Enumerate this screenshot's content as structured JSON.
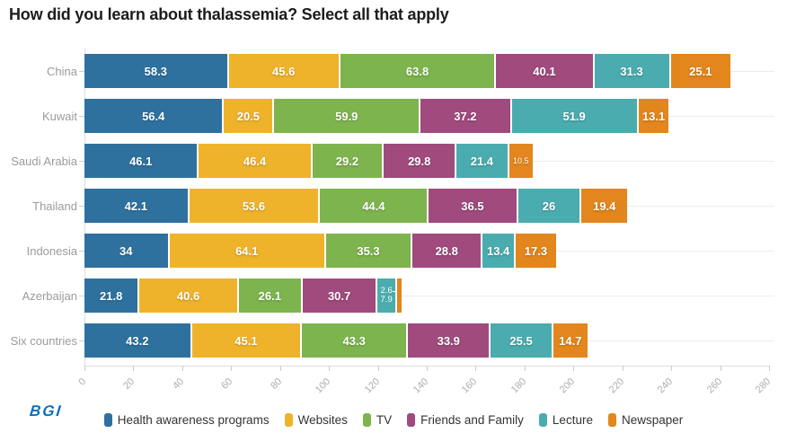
{
  "chart_data": {
    "type": "bar",
    "stacked": true,
    "orientation": "horizontal",
    "title": "How did you learn about thalassemia? Select all that apply",
    "categories": [
      "China",
      "Kuwait",
      "Saudi Arabia",
      "Thailand",
      "Indonesia",
      "Azerbaijan",
      "Six countries"
    ],
    "series": [
      {
        "name": "Health awareness programs",
        "color": "#2f719e",
        "values": [
          58.3,
          56.4,
          46.1,
          42.1,
          34,
          21.8,
          43.2
        ]
      },
      {
        "name": "Websites",
        "color": "#efb32b",
        "values": [
          45.6,
          20.5,
          46.4,
          53.6,
          64.1,
          40.6,
          45.1
        ]
      },
      {
        "name": "TV",
        "color": "#7db44e",
        "values": [
          63.8,
          59.9,
          29.2,
          44.4,
          35.3,
          26.1,
          43.3
        ]
      },
      {
        "name": "Friends and Family",
        "color": "#a04a7e",
        "values": [
          40.1,
          37.2,
          29.8,
          36.5,
          28.8,
          30.7,
          33.9
        ]
      },
      {
        "name": "Lecture",
        "color": "#4aacae",
        "values": [
          31.3,
          51.9,
          21.4,
          26,
          13.4,
          7.9,
          25.5
        ]
      },
      {
        "name": "Newspaper",
        "color": "#e2861d",
        "values": [
          25.1,
          13.1,
          10.5,
          19.4,
          17.3,
          2.6,
          14.7
        ]
      }
    ],
    "value_labels": [
      [
        "58.3",
        "45.6",
        "63.8",
        "40.1",
        "31.3",
        "25.1"
      ],
      [
        "56.4",
        "20.5",
        "59.9",
        "37.2",
        "51.9",
        "13.1"
      ],
      [
        "46.1",
        "46.4",
        "29.2",
        "29.8",
        "21.4",
        {
          "text": "10.5",
          "small": true
        }
      ],
      [
        "42.1",
        "53.6",
        "44.4",
        "36.5",
        "26",
        "19.4"
      ],
      [
        "34",
        "64.1",
        "35.3",
        "28.8",
        "13.4",
        "17.3"
      ],
      [
        "21.8",
        "40.6",
        "26.1",
        "30.7",
        {
          "stacked": [
            "2.6",
            "7.9"
          ],
          "leader": true
        },
        ""
      ],
      [
        "43.2",
        "45.1",
        "43.3",
        "33.9",
        "25.5",
        "14.7"
      ]
    ],
    "xlim": [
      0,
      280
    ],
    "x_ticks": [
      0,
      20,
      40,
      60,
      80,
      100,
      120,
      140,
      160,
      180,
      200,
      220,
      240,
      260,
      280
    ],
    "grid": true,
    "legend_position": "bottom"
  },
  "footer": {
    "logo_text": "BGI"
  }
}
